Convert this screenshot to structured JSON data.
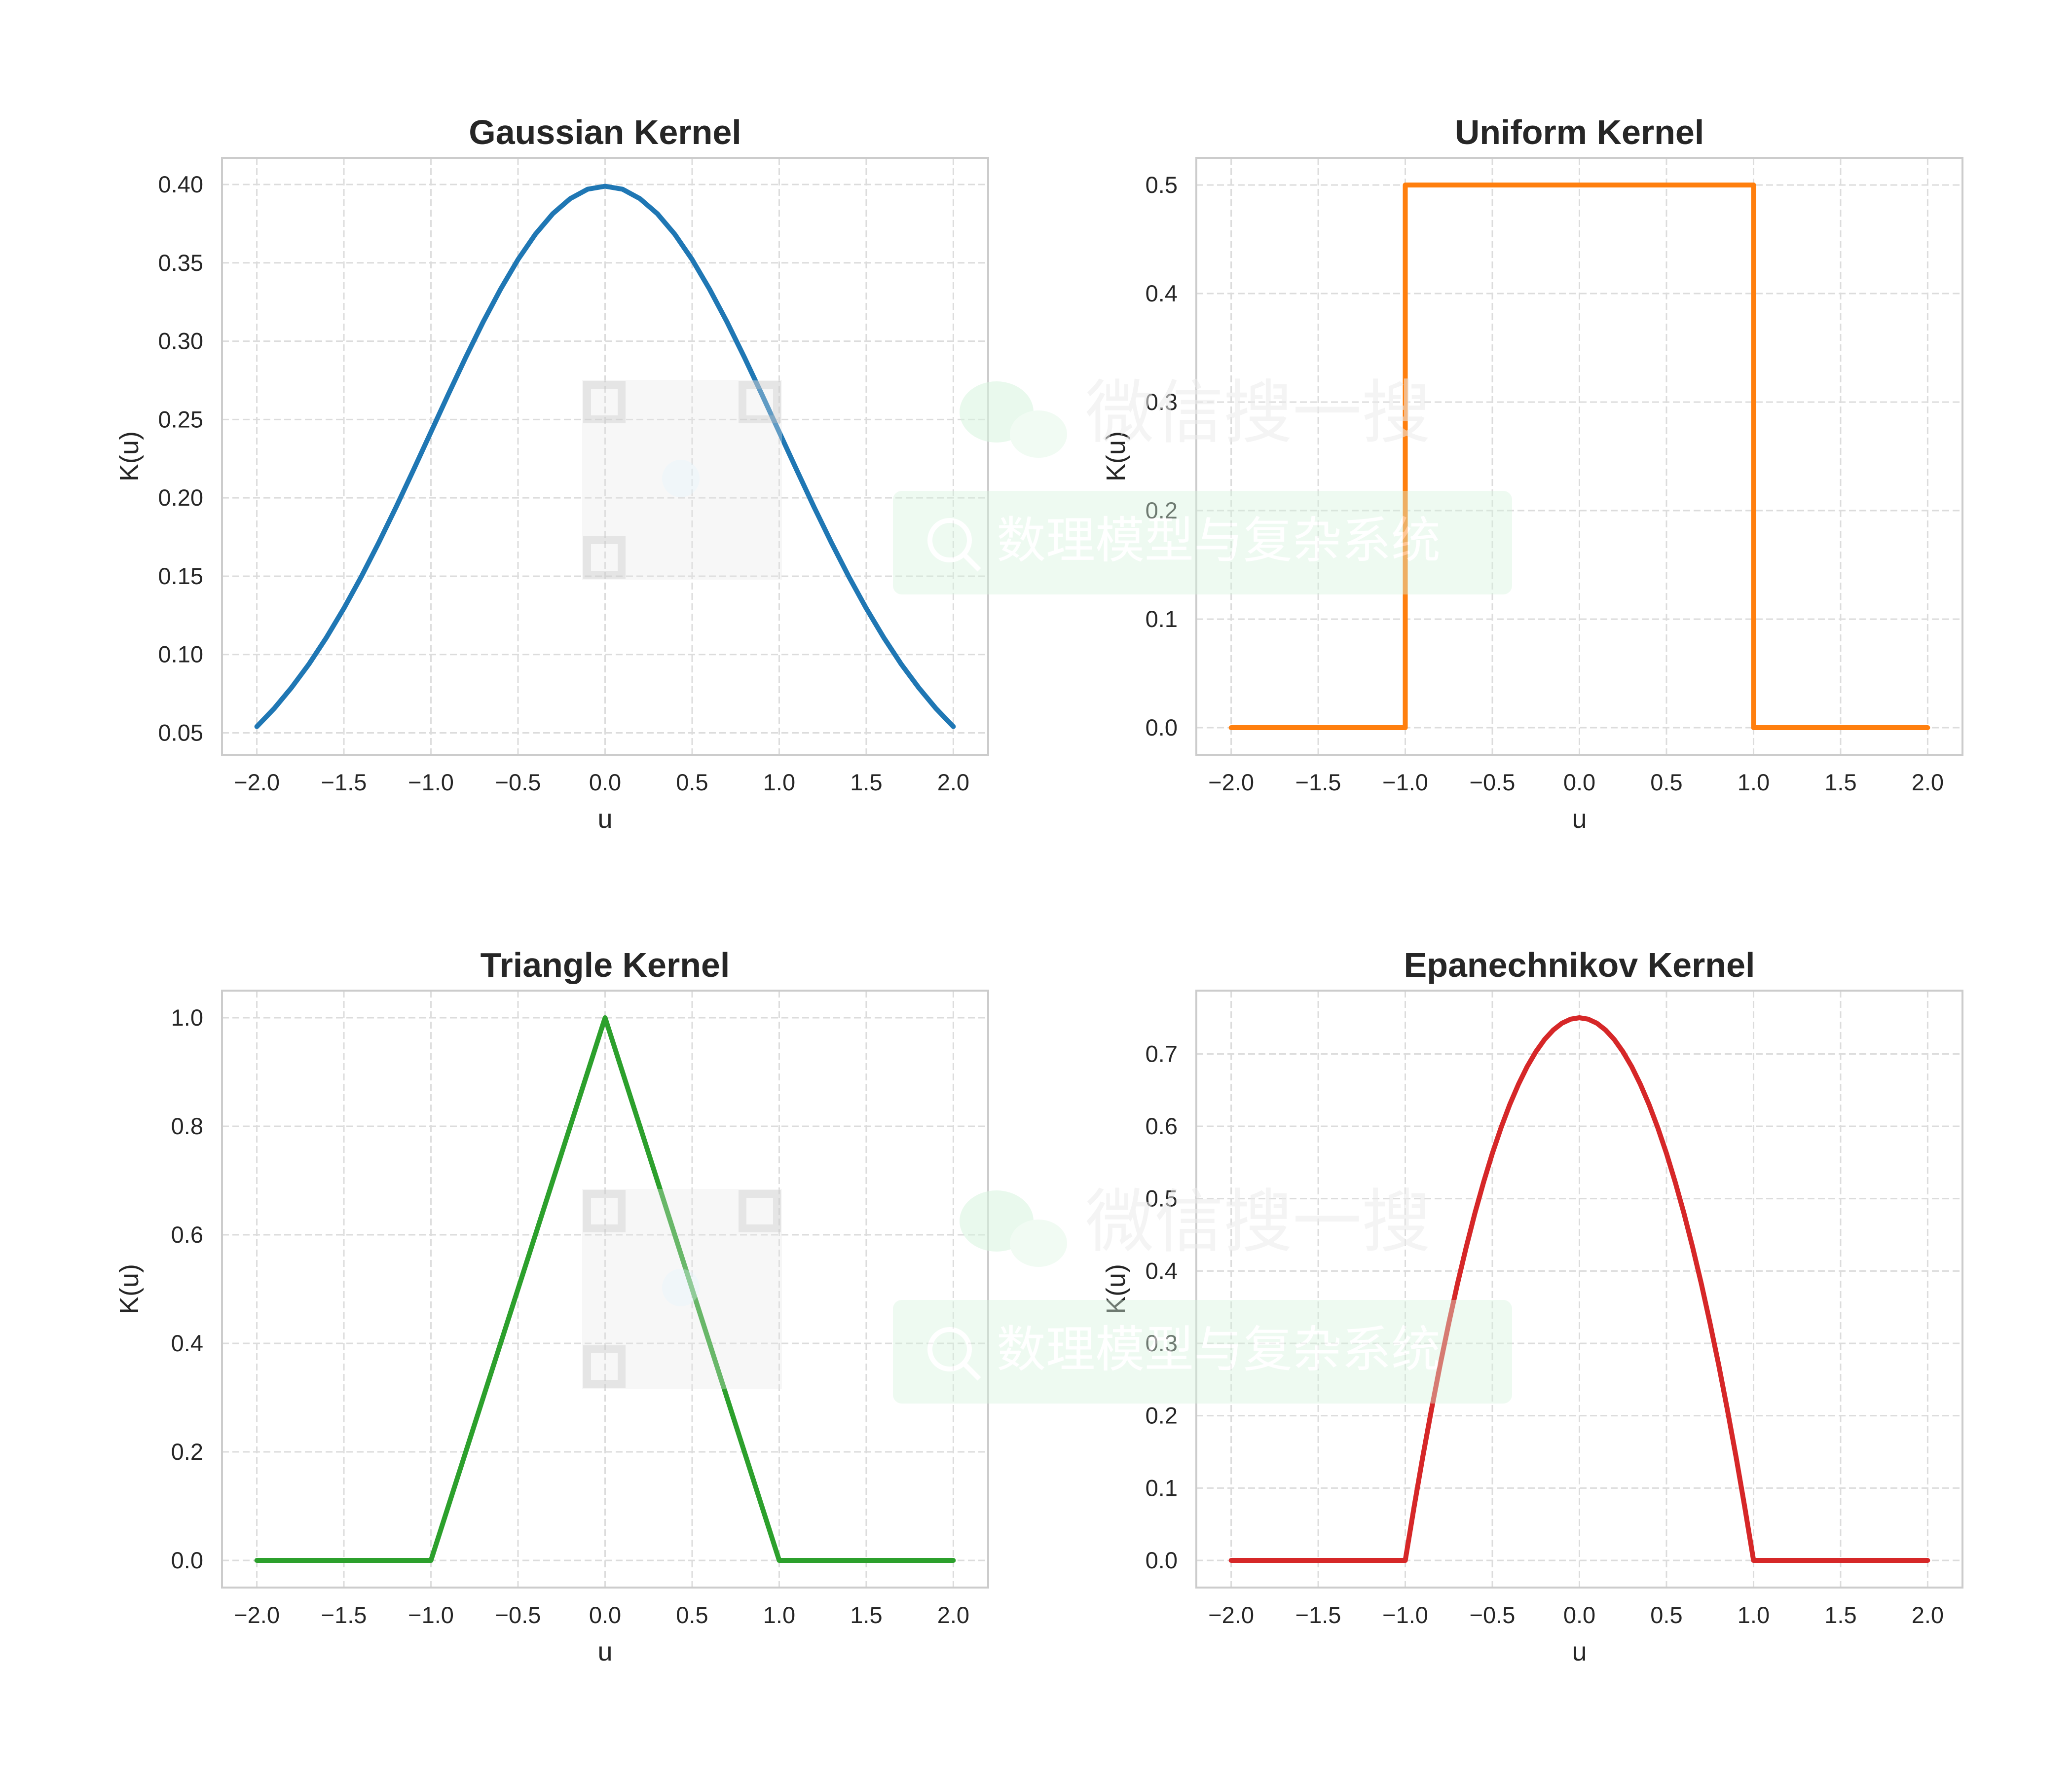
{
  "watermark": {
    "brand": "微信搜一搜",
    "search": "数理模型与复杂系统",
    "icon": "wechat-icon"
  },
  "chart_data": [
    {
      "type": "line",
      "title": "Gaussian Kernel",
      "xlabel": "u",
      "ylabel": "K(u)",
      "color": "#1f77b4",
      "xlim": [
        -2.2,
        2.2
      ],
      "ylim": [
        0.036,
        0.417
      ],
      "xticks": [
        -2.0,
        -1.5,
        -1.0,
        -0.5,
        0.0,
        0.5,
        1.0,
        1.5,
        2.0
      ],
      "xtick_labels": [
        "−2.0",
        "−1.5",
        "−1.0",
        "−0.5",
        "0.0",
        "0.5",
        "1.0",
        "1.5",
        "2.0"
      ],
      "yticks": [
        0.05,
        0.1,
        0.15,
        0.2,
        0.25,
        0.3,
        0.35,
        0.4
      ],
      "ytick_labels": [
        "0.05",
        "0.10",
        "0.15",
        "0.20",
        "0.25",
        "0.30",
        "0.35",
        "0.40"
      ],
      "grid": true,
      "series": [
        {
          "x": [
            -2.0,
            -1.9,
            -1.8,
            -1.7,
            -1.6,
            -1.5,
            -1.4,
            -1.3,
            -1.2,
            -1.1,
            -1.0,
            -0.9,
            -0.8,
            -0.7,
            -0.6,
            -0.5,
            -0.4,
            -0.3,
            -0.2,
            -0.1,
            0.0,
            0.1,
            0.2,
            0.3,
            0.4,
            0.5,
            0.6,
            0.7,
            0.8,
            0.9,
            1.0,
            1.1,
            1.2,
            1.3,
            1.4,
            1.5,
            1.6,
            1.7,
            1.8,
            1.9,
            2.0
          ],
          "y": [
            0.054,
            0.0656,
            0.079,
            0.094,
            0.1109,
            0.1295,
            0.1497,
            0.1714,
            0.1942,
            0.2179,
            0.242,
            0.2661,
            0.2897,
            0.3123,
            0.3332,
            0.3521,
            0.3683,
            0.3814,
            0.391,
            0.397,
            0.3989,
            0.397,
            0.391,
            0.3814,
            0.3683,
            0.3521,
            0.3332,
            0.3123,
            0.2897,
            0.2661,
            0.242,
            0.2179,
            0.1942,
            0.1714,
            0.1497,
            0.1295,
            0.1109,
            0.094,
            0.079,
            0.0656,
            0.054
          ]
        }
      ]
    },
    {
      "type": "line",
      "title": "Uniform Kernel",
      "xlabel": "u",
      "ylabel": "K(u)",
      "color": "#ff7f0e",
      "xlim": [
        -2.2,
        2.2
      ],
      "ylim": [
        -0.025,
        0.525
      ],
      "xticks": [
        -2.0,
        -1.5,
        -1.0,
        -0.5,
        0.0,
        0.5,
        1.0,
        1.5,
        2.0
      ],
      "xtick_labels": [
        "−2.0",
        "−1.5",
        "−1.0",
        "−0.5",
        "0.0",
        "0.5",
        "1.0",
        "1.5",
        "2.0"
      ],
      "yticks": [
        0.0,
        0.1,
        0.2,
        0.3,
        0.4,
        0.5
      ],
      "ytick_labels": [
        "0.0",
        "0.1",
        "0.2",
        "0.3",
        "0.4",
        "0.5"
      ],
      "grid": true,
      "series": [
        {
          "x": [
            -2.0,
            -1.0,
            -1.0,
            1.0,
            1.0,
            2.0
          ],
          "y": [
            0.0,
            0.0,
            0.5,
            0.5,
            0.0,
            0.0
          ]
        }
      ]
    },
    {
      "type": "line",
      "title": "Triangle Kernel",
      "xlabel": "u",
      "ylabel": "K(u)",
      "color": "#2ca02c",
      "xlim": [
        -2.2,
        2.2
      ],
      "ylim": [
        -0.05,
        1.05
      ],
      "xticks": [
        -2.0,
        -1.5,
        -1.0,
        -0.5,
        0.0,
        0.5,
        1.0,
        1.5,
        2.0
      ],
      "xtick_labels": [
        "−2.0",
        "−1.5",
        "−1.0",
        "−0.5",
        "0.0",
        "0.5",
        "1.0",
        "1.5",
        "2.0"
      ],
      "yticks": [
        0.0,
        0.2,
        0.4,
        0.6,
        0.8,
        1.0
      ],
      "ytick_labels": [
        "0.0",
        "0.2",
        "0.4",
        "0.6",
        "0.8",
        "1.0"
      ],
      "grid": true,
      "series": [
        {
          "x": [
            -2.0,
            -1.0,
            0.0,
            1.0,
            2.0
          ],
          "y": [
            0.0,
            0.0,
            1.0,
            0.0,
            0.0
          ]
        }
      ]
    },
    {
      "type": "line",
      "title": "Epanechnikov Kernel",
      "xlabel": "u",
      "ylabel": "K(u)",
      "color": "#d62728",
      "xlim": [
        -2.2,
        2.2
      ],
      "ylim": [
        -0.0375,
        0.7875
      ],
      "xticks": [
        -2.0,
        -1.5,
        -1.0,
        -0.5,
        0.0,
        0.5,
        1.0,
        1.5,
        2.0
      ],
      "xtick_labels": [
        "−2.0",
        "−1.5",
        "−1.0",
        "−0.5",
        "0.0",
        "0.5",
        "1.0",
        "1.5",
        "2.0"
      ],
      "yticks": [
        0.0,
        0.1,
        0.2,
        0.3,
        0.4,
        0.5,
        0.6,
        0.7
      ],
      "ytick_labels": [
        "0.0",
        "0.1",
        "0.2",
        "0.3",
        "0.4",
        "0.5",
        "0.6",
        "0.7"
      ],
      "grid": true,
      "series": [
        {
          "x": [
            -2.0,
            -1.0,
            -0.95,
            -0.9,
            -0.85,
            -0.8,
            -0.75,
            -0.7,
            -0.65,
            -0.6,
            -0.55,
            -0.5,
            -0.45,
            -0.4,
            -0.35,
            -0.3,
            -0.25,
            -0.2,
            -0.15,
            -0.1,
            -0.05,
            0.0,
            0.05,
            0.1,
            0.15,
            0.2,
            0.25,
            0.3,
            0.35,
            0.4,
            0.45,
            0.5,
            0.55,
            0.6,
            0.65,
            0.7,
            0.75,
            0.8,
            0.85,
            0.9,
            0.95,
            1.0,
            2.0
          ],
          "y": [
            0.0,
            0.0,
            0.0731,
            0.1425,
            0.2081,
            0.27,
            0.3281,
            0.3825,
            0.4331,
            0.48,
            0.5231,
            0.5625,
            0.5981,
            0.63,
            0.6581,
            0.6825,
            0.7031,
            0.72,
            0.7331,
            0.7425,
            0.7481,
            0.75,
            0.7481,
            0.7425,
            0.7331,
            0.72,
            0.7031,
            0.6825,
            0.6581,
            0.63,
            0.5981,
            0.5625,
            0.5231,
            0.48,
            0.4331,
            0.3825,
            0.3281,
            0.27,
            0.2081,
            0.1425,
            0.0731,
            0.0,
            0.0
          ]
        }
      ]
    }
  ]
}
